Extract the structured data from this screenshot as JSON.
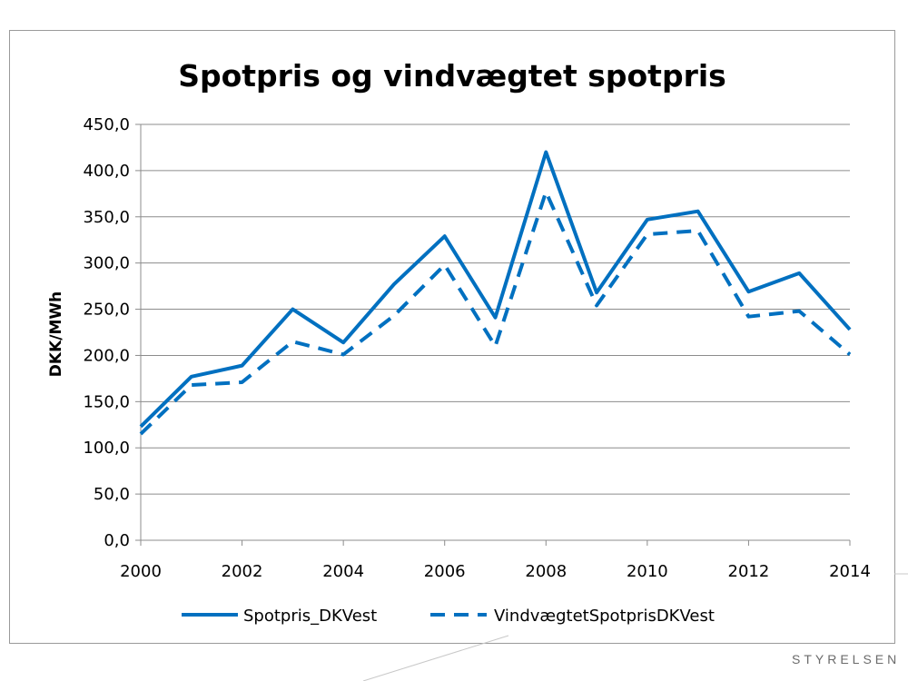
{
  "chart_data": {
    "type": "line",
    "title": "Spotpris og vindvægtet spotpris",
    "xlabel": "",
    "ylabel": "DKK/MWh",
    "x": [
      2000,
      2001,
      2002,
      2003,
      2004,
      2005,
      2006,
      2007,
      2008,
      2009,
      2010,
      2011,
      2012,
      2013,
      2014
    ],
    "x_tick_labels": [
      "2000",
      "2002",
      "2004",
      "2006",
      "2008",
      "2010",
      "2012",
      "2014"
    ],
    "x_tick_values": [
      2000,
      2002,
      2004,
      2006,
      2008,
      2010,
      2012,
      2014
    ],
    "y_tick_labels": [
      "0,0",
      "50,0",
      "100,0",
      "150,0",
      "200,0",
      "250,0",
      "300,0",
      "350,0",
      "400,0",
      "450,0"
    ],
    "y_tick_values": [
      0,
      50,
      100,
      150,
      200,
      250,
      300,
      350,
      400,
      450
    ],
    "xlim": [
      2000,
      2014
    ],
    "ylim": [
      0,
      450
    ],
    "grid": true,
    "legend_position": "bottom",
    "series": [
      {
        "name": "Spotpris_DKVest",
        "style": "solid",
        "color": "#0070c0",
        "values": [
          123,
          177,
          189,
          250,
          214,
          277,
          329,
          241,
          420,
          268,
          347,
          356,
          269,
          289,
          228
        ]
      },
      {
        "name": "VindvægtetSpotprisDKVest",
        "style": "dashed",
        "color": "#0070c0",
        "values": [
          115,
          168,
          171,
          215,
          201,
          243,
          298,
          210,
          377,
          254,
          331,
          335,
          242,
          248,
          201
        ]
      }
    ]
  },
  "branding": {
    "text": "STYRELSEN",
    "color": "#6b6b6b"
  }
}
